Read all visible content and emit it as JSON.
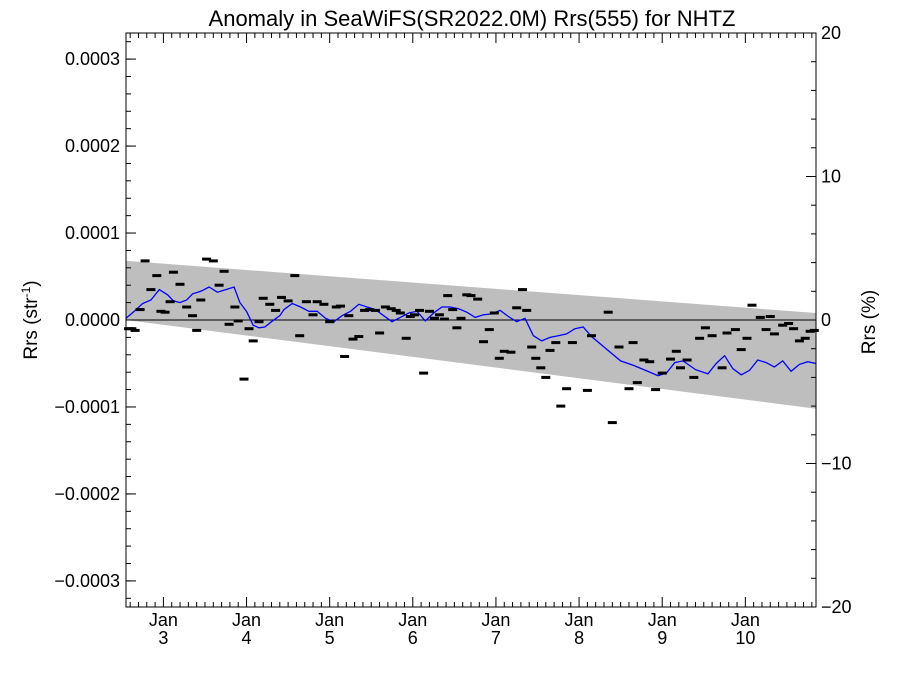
{
  "chart_data": {
    "type": "scatter",
    "title": "Anomaly in SeaWiFS(SR2022.0M) Rrs(555) for NHTZ",
    "ylabel_main": "Rrs (str",
    "ylabel_sup": "-1",
    "ylabel_close": ")",
    "y2label": "Rrs (%)",
    "xlim": [
      2.55,
      10.85
    ],
    "ylim": [
      -0.00033,
      0.00033
    ],
    "y2lim": [
      -20,
      20
    ],
    "yticks": [
      -0.0003,
      -0.0002,
      -0.0001,
      0,
      0.0001,
      0.0002,
      0.0003
    ],
    "ytick_labels": [
      "−0.0003",
      "−0.0002",
      "−0.0001",
      "0.0000",
      "0.0001",
      "0.0002",
      "0.0003"
    ],
    "y2ticks": [
      -20,
      -10,
      0,
      10,
      20
    ],
    "y2tick_labels": [
      "−20",
      "−10",
      "0",
      "10",
      "20"
    ],
    "xticks": [
      3,
      4,
      5,
      6,
      7,
      8,
      9,
      10
    ],
    "xtick_month": "Jan",
    "xtick_years": [
      "3",
      "4",
      "5",
      "6",
      "7",
      "8",
      "9",
      "10"
    ],
    "uncertainty_band": {
      "x": [
        2.55,
        10.85
      ],
      "upper": [
        6.8e-05,
        8e-06
      ],
      "lower": [
        0.0,
        -0.000102
      ],
      "color": "#bebebe"
    },
    "series": [
      {
        "kind": "points",
        "color": "#000000",
        "x": [
          2.58,
          2.62,
          2.66,
          2.72,
          2.78,
          2.85,
          2.92,
          2.97,
          3.02,
          3.08,
          3.12,
          3.2,
          3.28,
          3.35,
          3.4,
          3.45,
          3.52,
          3.6,
          3.67,
          3.73,
          3.79,
          3.86,
          3.9,
          3.97,
          4.03,
          4.08,
          4.15,
          4.2,
          4.28,
          4.35,
          4.42,
          4.5,
          4.58,
          4.64,
          4.72,
          4.8,
          4.85,
          4.93,
          5.0,
          5.08,
          5.13,
          5.18,
          5.23,
          5.28,
          5.35,
          5.42,
          5.48,
          5.55,
          5.6,
          5.67,
          5.74,
          5.8,
          5.85,
          5.92,
          5.97,
          6.02,
          6.08,
          6.13,
          6.2,
          6.26,
          6.32,
          6.38,
          6.42,
          6.48,
          6.53,
          6.58,
          6.65,
          6.7,
          6.78,
          6.85,
          6.92,
          6.98,
          7.04,
          7.1,
          7.18,
          7.25,
          7.32,
          7.37,
          7.43,
          7.48,
          7.54,
          7.6,
          7.65,
          7.72,
          7.78,
          7.85,
          7.92,
          8.1,
          8.15,
          8.35,
          8.4,
          8.48,
          8.6,
          8.65,
          8.7,
          8.78,
          8.85,
          8.92,
          9.0,
          9.1,
          9.17,
          9.22,
          9.3,
          9.38,
          9.45,
          9.52,
          9.6,
          9.72,
          9.78,
          9.88,
          9.95,
          10.02,
          10.08,
          10.18,
          10.25,
          10.3,
          10.35,
          10.45,
          10.52,
          10.58,
          10.65,
          10.72,
          10.78,
          10.83
        ],
        "y": [
          -1e-05,
          -1e-05,
          -1.2e-05,
          1.2e-05,
          6.8e-05,
          3.5e-05,
          5.1e-05,
          1e-05,
          9e-06,
          2.1e-05,
          5.5e-05,
          4.1e-05,
          1.5e-05,
          5e-06,
          -1.2e-05,
          2.3e-05,
          7e-05,
          6.8e-05,
          4e-05,
          5.6e-05,
          -5e-06,
          1.5e-05,
          -1e-06,
          -6.8e-05,
          -1e-05,
          -2.4e-05,
          -2e-06,
          2.5e-05,
          1.8e-05,
          1.1e-05,
          2.6e-05,
          2.2e-05,
          5.1e-05,
          -1.8e-05,
          2.1e-05,
          6e-06,
          2.1e-05,
          1.8e-05,
          -2e-06,
          1.5e-05,
          1.6e-05,
          -4.2e-05,
          5e-06,
          -2.2e-05,
          -1.9e-05,
          1.1e-05,
          1.2e-05,
          1.1e-05,
          -1.5e-05,
          1.5e-05,
          1.3e-05,
          1.1e-05,
          8e-06,
          -2.1e-05,
          4e-06,
          6e-06,
          1.1e-05,
          -6.1e-05,
          1e-05,
          2e-06,
          6e-06,
          1e-06,
          2.8e-05,
          1.2e-05,
          -9e-06,
          2e-06,
          2.9e-05,
          2.8e-05,
          2.4e-05,
          -2.5e-05,
          -1.1e-05,
          8e-06,
          -4.4e-05,
          -3.6e-05,
          -3.7e-05,
          1.4e-05,
          3.5e-05,
          1.1e-05,
          -3.1e-05,
          -4.4e-05,
          -5.5e-05,
          -6.6e-05,
          -3.5e-05,
          -2.6e-05,
          -9.9e-05,
          -7.9e-05,
          -2.6e-05,
          -8.1e-05,
          -1.8e-05,
          9e-06,
          -0.000118,
          -3.1e-05,
          -7.9e-05,
          -2.6e-05,
          -7.2e-05,
          -4.6e-05,
          -4.8e-05,
          -8e-05,
          -6.1e-05,
          -4.5e-05,
          -3.6e-05,
          -5.5e-05,
          -4.6e-05,
          -6.6e-05,
          -2.1e-05,
          -9e-06,
          -1.8e-05,
          -5.5e-05,
          -1.5e-05,
          -1.1e-05,
          -3.4e-05,
          -2.1e-05,
          1.7e-05,
          3e-06,
          -1.1e-05,
          4e-06,
          -1.6e-05,
          -6e-06,
          -4e-06,
          -1e-05,
          -2.4e-05,
          -2.1e-05,
          -1.3e-05,
          -1.2e-05
        ]
      },
      {
        "kind": "line",
        "color": "#0000ff",
        "x": [
          2.55,
          2.65,
          2.75,
          2.85,
          2.95,
          3.05,
          3.12,
          3.2,
          3.28,
          3.35,
          3.45,
          3.55,
          3.65,
          3.75,
          3.85,
          3.92,
          4.0,
          4.08,
          4.15,
          4.22,
          4.3,
          4.4,
          4.45,
          4.55,
          4.65,
          4.75,
          4.85,
          4.95,
          5.05,
          5.15,
          5.25,
          5.35,
          5.45,
          5.55,
          5.65,
          5.75,
          5.85,
          5.95,
          6.05,
          6.15,
          6.25,
          6.35,
          6.45,
          6.55,
          6.65,
          6.75,
          6.85,
          6.95,
          7.05,
          7.15,
          7.25,
          7.35,
          7.45,
          7.55,
          7.65,
          7.75,
          7.85,
          7.95,
          8.05,
          8.15,
          8.3,
          8.5,
          8.65,
          8.8,
          8.95,
          9.05,
          9.15,
          9.25,
          9.4,
          9.55,
          9.65,
          9.75,
          9.85,
          9.95,
          10.05,
          10.15,
          10.25,
          10.35,
          10.45,
          10.55,
          10.65,
          10.75,
          10.85
        ],
        "y": [
          2e-06,
          1e-05,
          1.9e-05,
          2.3e-05,
          3.5e-05,
          2.9e-05,
          2.2e-05,
          2e-05,
          2.3e-05,
          3e-05,
          3.3e-05,
          3.8e-05,
          3.2e-05,
          3.5e-05,
          3.8e-05,
          2e-05,
          1e-05,
          -6e-06,
          -9e-06,
          -8e-06,
          -2e-06,
          5e-06,
          1.2e-05,
          1.9e-05,
          1.5e-05,
          1e-05,
          1e-05,
          2e-06,
          -2e-06,
          5e-06,
          1e-05,
          1.8e-05,
          1.5e-05,
          1.2e-05,
          5e-06,
          -2e-06,
          3e-06,
          8e-06,
          1e-05,
          -1e-06,
          8e-06,
          1.5e-05,
          1.5e-05,
          1.3e-05,
          9e-06,
          3e-06,
          6e-06,
          7e-06,
          1.1e-05,
          4e-06,
          -2e-06,
          2e-06,
          -1.8e-05,
          -2.4e-05,
          -2e-05,
          -1.8e-05,
          -1.6e-05,
          -1e-05,
          -8e-06,
          -1.9e-05,
          -3.1e-05,
          -4.7e-05,
          -5.2e-05,
          -5.8e-05,
          -6.4e-05,
          -6.1e-05,
          -4.9e-05,
          -4.7e-05,
          -5.7e-05,
          -6.2e-05,
          -5e-05,
          -4.1e-05,
          -5.6e-05,
          -6.3e-05,
          -5.8e-05,
          -4.6e-05,
          -4.9e-05,
          -5.4e-05,
          -4.7e-05,
          -5.9e-05,
          -5.1e-05,
          -4.8e-05,
          -5e-05
        ]
      }
    ],
    "zero_line": 0,
    "grid": false,
    "legend": "none"
  }
}
